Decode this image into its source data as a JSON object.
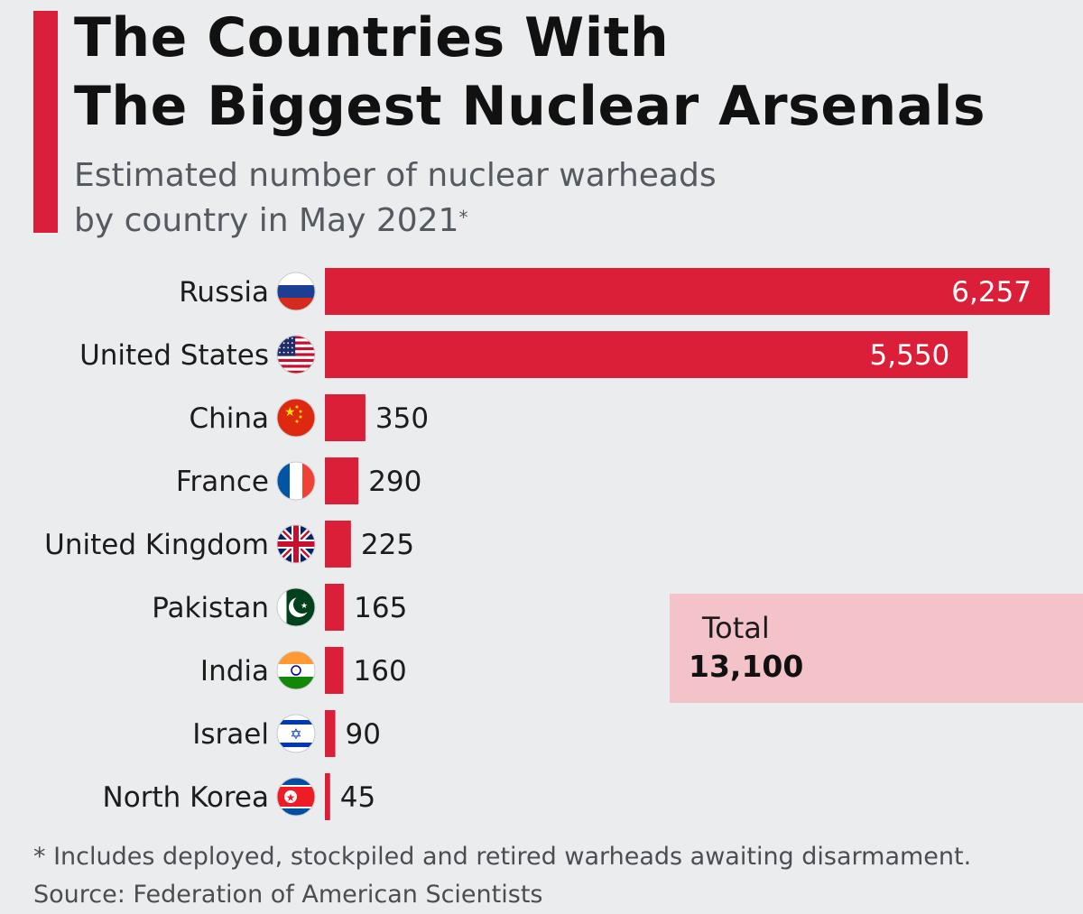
{
  "title_line1": "The Countries With",
  "title_line2": "The Biggest Nuclear Arsenals",
  "subtitle_line1": "Estimated number of nuclear warheads",
  "subtitle_line2": "by country in May 2021",
  "subtitle_mark": "*",
  "footnote": "* Includes deployed, stockpiled and retired warheads awaiting disarmament.",
  "source": "Source: Federation of American Scientists",
  "total": {
    "label": "Total",
    "value": "13,100"
  },
  "colors": {
    "accent": "#d91f3a",
    "bar": "#dc1f38",
    "total_box": "#f3c3c9",
    "background": "#ebecee"
  },
  "chart_data": {
    "type": "bar",
    "orientation": "horizontal",
    "categories": [
      "Russia",
      "United States",
      "China",
      "France",
      "United Kingdom",
      "Pakistan",
      "India",
      "Israel",
      "North Korea"
    ],
    "values": [
      6257,
      5550,
      350,
      290,
      225,
      165,
      160,
      90,
      45
    ],
    "value_labels": [
      "6,257",
      "5,550",
      "350",
      "290",
      "225",
      "165",
      "160",
      "90",
      "45"
    ],
    "flags": [
      "russia-flag",
      "usa-flag",
      "china-flag",
      "france-flag",
      "uk-flag",
      "pakistan-flag",
      "india-flag",
      "israel-flag",
      "north-korea-flag"
    ],
    "xlim": [
      0,
      6257
    ],
    "grid": false,
    "legend": "none"
  }
}
